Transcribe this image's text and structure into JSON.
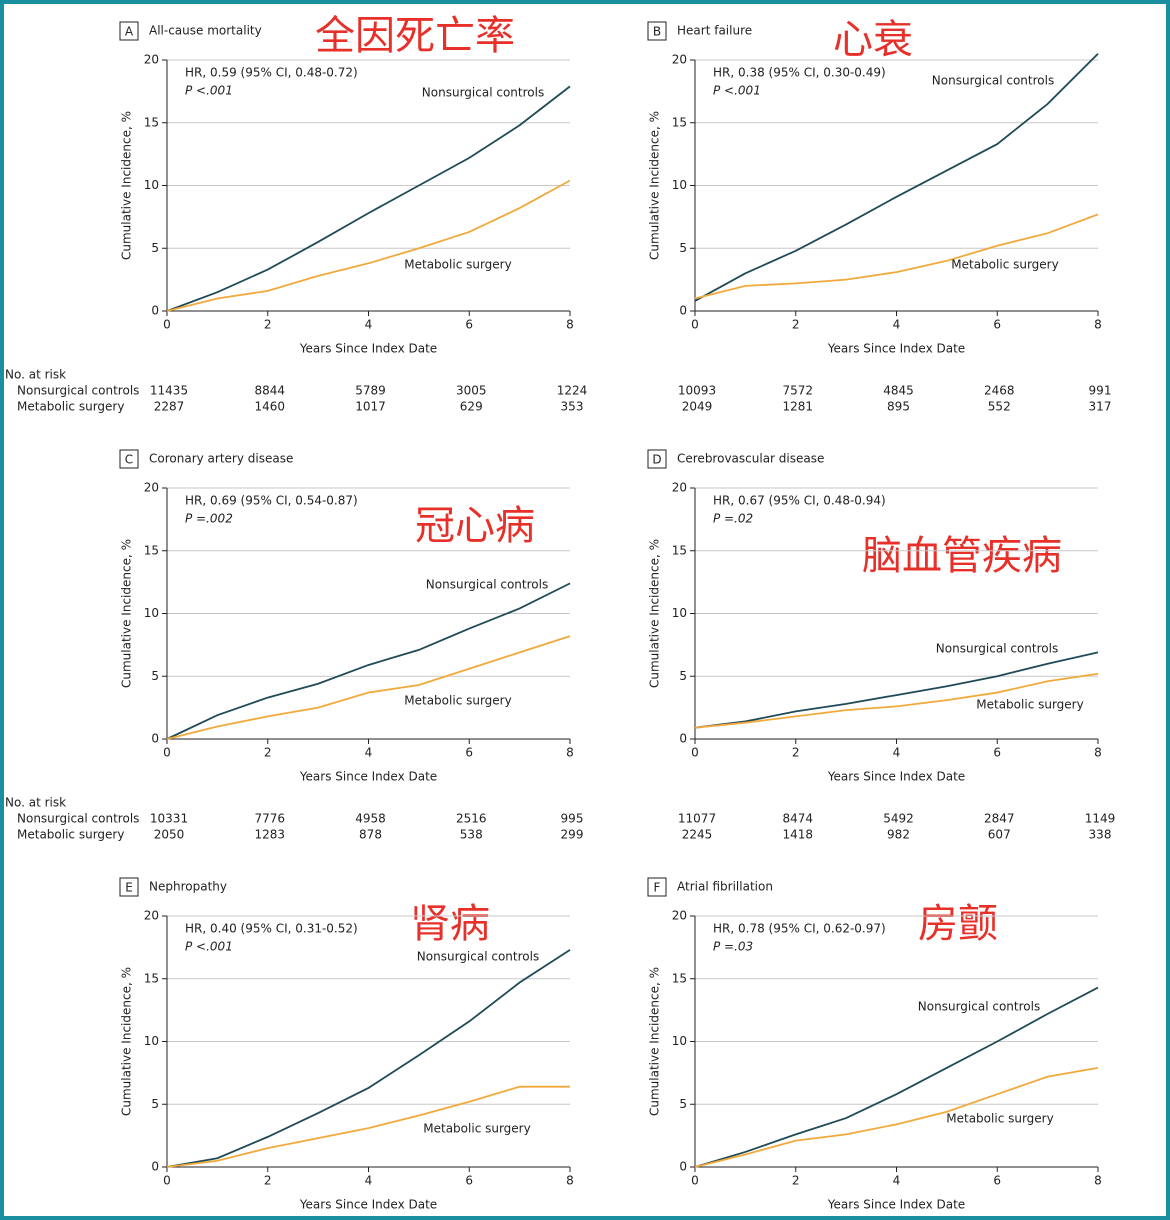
{
  "chart_data": [
    {
      "type": "line",
      "panel": "A",
      "title": "All-cause mortality",
      "annotation": "全因死亡率",
      "hr": "HR, 0.59 (95% CI, 0.48-0.72)",
      "p": "P <.001",
      "xlabel": "Years Since Index Date",
      "ylabel": "Cumulative Incidence, %",
      "x": [
        0,
        1,
        2,
        3,
        4,
        5,
        6,
        7,
        8
      ],
      "xlim": [
        0,
        8
      ],
      "xticks": [
        0,
        2,
        4,
        6,
        8
      ],
      "ylim": [
        0,
        20
      ],
      "yticks": [
        0,
        5,
        10,
        15,
        20
      ],
      "grid": true,
      "series": [
        {
          "name": "Nonsurgical controls",
          "color": "#1f4a57",
          "values": [
            0,
            1.5,
            3.3,
            5.5,
            7.8,
            10.0,
            12.2,
            14.8,
            17.9
          ],
          "at_risk": [
            11435,
            8844,
            5789,
            3005,
            1224
          ]
        },
        {
          "name": "Metabolic surgery",
          "color": "#f2a93b",
          "values": [
            0,
            1.0,
            1.6,
            2.8,
            3.8,
            5.0,
            6.3,
            8.2,
            10.4
          ],
          "at_risk": [
            2287,
            1460,
            1017,
            629,
            353
          ]
        }
      ]
    },
    {
      "type": "line",
      "panel": "B",
      "title": "Heart failure",
      "annotation": "心衰",
      "hr": "HR, 0.38 (95% CI, 0.30-0.49)",
      "p": "P <.001",
      "xlabel": "Years Since Index Date",
      "ylabel": "Cumulative Incidence, %",
      "x": [
        0,
        1,
        2,
        3,
        4,
        5,
        6,
        7,
        8
      ],
      "xlim": [
        0,
        8
      ],
      "xticks": [
        0,
        2,
        4,
        6,
        8
      ],
      "ylim": [
        0,
        20
      ],
      "yticks": [
        0,
        5,
        10,
        15,
        20
      ],
      "grid": true,
      "series": [
        {
          "name": "Nonsurgical controls",
          "color": "#1f4a57",
          "values": [
            0.8,
            3.0,
            4.8,
            6.9,
            9.1,
            11.2,
            13.3,
            16.5,
            20.5
          ],
          "at_risk": [
            10093,
            7572,
            4845,
            2468,
            991
          ]
        },
        {
          "name": "Metabolic surgery",
          "color": "#f2a93b",
          "values": [
            1.0,
            2.0,
            2.2,
            2.5,
            3.1,
            4.0,
            5.2,
            6.2,
            7.7
          ],
          "at_risk": [
            2049,
            1281,
            895,
            552,
            317
          ]
        }
      ]
    },
    {
      "type": "line",
      "panel": "C",
      "title": "Coronary artery disease",
      "annotation": "冠心病",
      "hr": "HR, 0.69 (95% CI, 0.54-0.87)",
      "p": "P =.002",
      "xlabel": "Years Since Index Date",
      "ylabel": "Cumulative Incidence, %",
      "x": [
        0,
        1,
        2,
        3,
        4,
        5,
        6,
        7,
        8
      ],
      "xlim": [
        0,
        8
      ],
      "xticks": [
        0,
        2,
        4,
        6,
        8
      ],
      "ylim": [
        0,
        20
      ],
      "yticks": [
        0,
        5,
        10,
        15,
        20
      ],
      "grid": true,
      "series": [
        {
          "name": "Nonsurgical controls",
          "color": "#1f4a57",
          "values": [
            0,
            1.9,
            3.3,
            4.4,
            5.9,
            7.1,
            8.8,
            10.4,
            12.4
          ],
          "at_risk": [
            10331,
            7776,
            4958,
            2516,
            995
          ]
        },
        {
          "name": "Metabolic surgery",
          "color": "#f2a93b",
          "values": [
            0,
            1.0,
            1.8,
            2.5,
            3.7,
            4.3,
            5.6,
            6.9,
            8.2
          ],
          "at_risk": [
            2050,
            1283,
            878,
            538,
            299
          ]
        }
      ]
    },
    {
      "type": "line",
      "panel": "D",
      "title": "Cerebrovascular disease",
      "annotation": "脑血管疾病",
      "hr": "HR, 0.67 (95% CI, 0.48-0.94)",
      "p": "P =.02",
      "xlabel": "Years Since Index Date",
      "ylabel": "Cumulative Incidence, %",
      "x": [
        0,
        1,
        2,
        3,
        4,
        5,
        6,
        7,
        8
      ],
      "xlim": [
        0,
        8
      ],
      "xticks": [
        0,
        2,
        4,
        6,
        8
      ],
      "ylim": [
        0,
        20
      ],
      "yticks": [
        0,
        5,
        10,
        15,
        20
      ],
      "grid": true,
      "series": [
        {
          "name": "Nonsurgical controls",
          "color": "#1f4a57",
          "values": [
            0.9,
            1.4,
            2.2,
            2.8,
            3.5,
            4.2,
            5.0,
            6.0,
            6.9
          ],
          "at_risk": [
            11077,
            8474,
            5492,
            2847,
            1149
          ]
        },
        {
          "name": "Metabolic surgery",
          "color": "#f2a93b",
          "values": [
            0.9,
            1.3,
            1.8,
            2.3,
            2.6,
            3.1,
            3.7,
            4.6,
            5.2
          ],
          "at_risk": [
            2245,
            1418,
            982,
            607,
            338
          ]
        }
      ]
    },
    {
      "type": "line",
      "panel": "E",
      "title": "Nephropathy",
      "annotation": "肾病",
      "hr": "HR, 0.40 (95% CI, 0.31-0.52)",
      "p": "P <.001",
      "xlabel": "Years Since Index Date",
      "ylabel": "Cumulative Incidence, %",
      "x": [
        0,
        1,
        2,
        3,
        4,
        5,
        6,
        7,
        8
      ],
      "xlim": [
        0,
        8
      ],
      "xticks": [
        0,
        2,
        4,
        6,
        8
      ],
      "ylim": [
        0,
        20
      ],
      "yticks": [
        0,
        5,
        10,
        15,
        20
      ],
      "grid": true,
      "series": [
        {
          "name": "Nonsurgical controls",
          "color": "#1f4a57",
          "values": [
            0,
            0.7,
            2.4,
            4.3,
            6.3,
            8.9,
            11.6,
            14.7,
            17.3
          ]
        },
        {
          "name": "Metabolic surgery",
          "color": "#f2a93b",
          "values": [
            0,
            0.5,
            1.5,
            2.3,
            3.1,
            4.1,
            5.2,
            6.4,
            6.4
          ]
        }
      ]
    },
    {
      "type": "line",
      "panel": "F",
      "title": "Atrial fibrillation",
      "annotation": "房颤",
      "hr": "HR, 0.78 (95% CI, 0.62-0.97)",
      "p": "P =.03",
      "xlabel": "Years Since Index Date",
      "ylabel": "Cumulative Incidence, %",
      "x": [
        0,
        1,
        2,
        3,
        4,
        5,
        6,
        7,
        8
      ],
      "xlim": [
        0,
        8
      ],
      "xticks": [
        0,
        2,
        4,
        6,
        8
      ],
      "ylim": [
        0,
        20
      ],
      "yticks": [
        0,
        5,
        10,
        15,
        20
      ],
      "grid": true,
      "series": [
        {
          "name": "Nonsurgical controls",
          "color": "#1f4a57",
          "values": [
            0,
            1.2,
            2.6,
            3.9,
            5.8,
            7.9,
            10.0,
            12.2,
            14.3
          ]
        },
        {
          "name": "Metabolic surgery",
          "color": "#f2a93b",
          "values": [
            0,
            1.0,
            2.1,
            2.6,
            3.4,
            4.4,
            5.8,
            7.2,
            7.9
          ]
        }
      ]
    }
  ],
  "annotation_color": "#e8302a",
  "risk_table": {
    "title": "No. at risk",
    "rows": [
      "Nonsurgical controls",
      "Metabolic surgery"
    ]
  }
}
